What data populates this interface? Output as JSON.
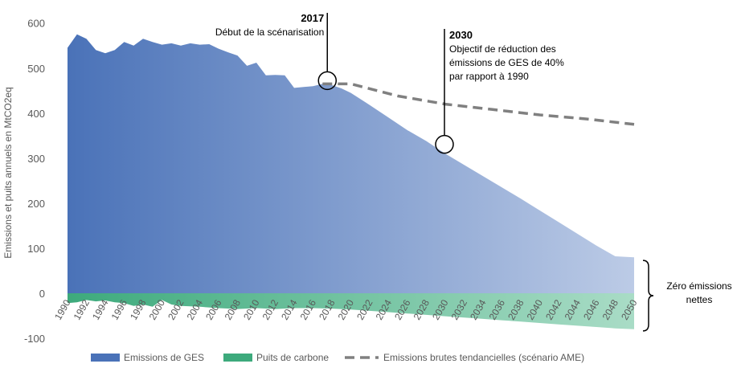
{
  "chart_data": {
    "type": "area",
    "ylabel": "Emissions et puits annuels en MtCO2eq",
    "ylim": [
      -100,
      600
    ],
    "yticks": [
      -100,
      0,
      100,
      200,
      300,
      400,
      500,
      600
    ],
    "xlim": [
      1990,
      2050
    ],
    "xticks": [
      1990,
      1992,
      1994,
      1996,
      1998,
      2000,
      2002,
      2004,
      2006,
      2008,
      2010,
      2012,
      2014,
      2016,
      2018,
      2020,
      2022,
      2024,
      2026,
      2028,
      2030,
      2032,
      2034,
      2036,
      2038,
      2040,
      2042,
      2044,
      2046,
      2048,
      2050
    ],
    "series": [
      {
        "name": "Emissions de GES",
        "color_start": "#4a72b8",
        "color_end": "#bccbe6",
        "x": [
          1990,
          1991,
          1992,
          1993,
          1994,
          1995,
          1996,
          1997,
          1998,
          1999,
          2000,
          2001,
          2002,
          2003,
          2004,
          2005,
          2006,
          2007,
          2008,
          2009,
          2010,
          2011,
          2012,
          2013,
          2014,
          2015,
          2016,
          2017,
          2018,
          2019,
          2020,
          2022,
          2024,
          2026,
          2028,
          2030,
          2032,
          2034,
          2036,
          2038,
          2040,
          2042,
          2044,
          2046,
          2048,
          2050
        ],
        "values": [
          545,
          575,
          565,
          540,
          533,
          540,
          558,
          550,
          565,
          558,
          552,
          555,
          550,
          555,
          552,
          553,
          543,
          535,
          528,
          505,
          512,
          484,
          485,
          484,
          456,
          458,
          460,
          465,
          462,
          455,
          445,
          418,
          390,
          362,
          338,
          310,
          285,
          260,
          235,
          210,
          184,
          158,
          132,
          106,
          82,
          80
        ]
      },
      {
        "name": "Puits de carbone",
        "color_start": "#3daa7c",
        "color_end": "#a9dcc6",
        "x": [
          1990,
          1991,
          1992,
          1993,
          1994,
          1995,
          1996,
          1997,
          1998,
          1999,
          2000,
          2001,
          2002,
          2004,
          2006,
          2008,
          2010,
          2012,
          2014,
          2016,
          2018,
          2020,
          2022,
          2024,
          2026,
          2028,
          2030,
          2032,
          2034,
          2036,
          2038,
          2040,
          2042,
          2044,
          2046,
          2048,
          2050
        ],
        "values": [
          -22,
          -20,
          -15,
          -18,
          -16,
          -20,
          -22,
          -28,
          -25,
          -30,
          -15,
          -25,
          -28,
          -30,
          -33,
          -35,
          -33,
          -35,
          -33,
          -33,
          -34,
          -36,
          -39,
          -42,
          -45,
          -48,
          -51,
          -54,
          -57,
          -60,
          -63,
          -66,
          -69,
          -72,
          -75,
          -78,
          -80
        ]
      },
      {
        "name": "Emissions brutes tendancielles (scénario AME)",
        "color": "#808080",
        "x": [
          2017,
          2020,
          2025,
          2030,
          2035,
          2040,
          2045,
          2050
        ],
        "values": [
          465,
          465,
          438,
          420,
          408,
          396,
          387,
          375
        ]
      }
    ],
    "annotations": [
      {
        "year": 2017,
        "value": 465,
        "title": "2017",
        "lines": [
          "Début de la scénarisation"
        ]
      },
      {
        "year": 2030,
        "value": 320,
        "title": "2030",
        "lines": [
          "Objectif de réduction des",
          "émissions de GES de 40%",
          "par rapport à 1990"
        ]
      }
    ],
    "bracket_label": [
      "Zéro émissions",
      "nettes"
    ]
  }
}
